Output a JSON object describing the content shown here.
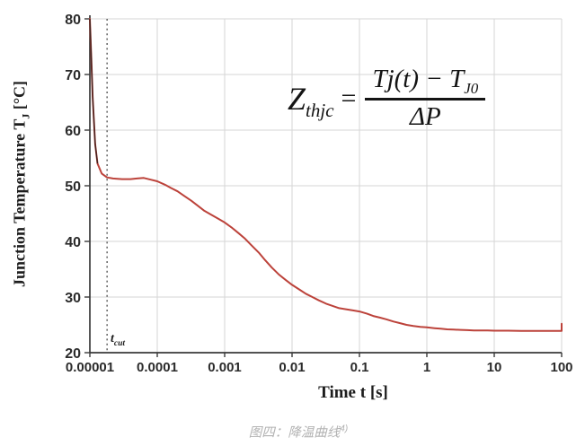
{
  "figure": {
    "caption": {
      "text": "图四：降温曲线",
      "superscript": "4)"
    },
    "formula": {
      "lhs_base": "Z",
      "lhs_sub": "thjc",
      "equals": "=",
      "numerator_main": "Tj(t) − T",
      "numerator_sub": "J0",
      "denominator": "ΔP"
    },
    "tcut_label": {
      "base": "t",
      "sub": "cut"
    }
  },
  "chart_data": {
    "type": "line",
    "title": "",
    "xlabel": "Time t [s]",
    "ylabel": {
      "pre": "Junction Temperature T",
      "sub": "J",
      "post": " [°C]"
    },
    "x_scale": "log",
    "xlim": [
      1e-05,
      100
    ],
    "ylim": [
      20,
      80
    ],
    "x_ticks": [
      "0.00001",
      "0.0001",
      "0.001",
      "0.01",
      "0.1",
      "1",
      "10",
      "100"
    ],
    "x_tick_values": [
      1e-05,
      0.0001,
      0.001,
      0.01,
      0.1,
      1,
      10,
      100
    ],
    "y_ticks": [
      20,
      30,
      40,
      50,
      60,
      70,
      80
    ],
    "grid": true,
    "legend": "none",
    "t_cut_value": 1.8e-05,
    "drop_segment_max_t": 1.31e-05,
    "colors": {
      "curve": "#bc423a",
      "drop": "#40231f",
      "grid": "#d6d6d6",
      "axis": "#3a3a3a",
      "dashed": "#4a4a4a",
      "tick_text": "#2b2b2b",
      "caption": "#b2b2b2"
    },
    "series": [
      {
        "name": "junction-temperature-cooling-curve",
        "color": "#bc423a",
        "points": [
          [
            1e-05,
            80
          ],
          [
            1.05e-05,
            73
          ],
          [
            1.1e-05,
            66
          ],
          [
            1.2e-05,
            57.5
          ],
          [
            1.3e-05,
            54
          ],
          [
            1.5e-05,
            52.2
          ],
          [
            1.8e-05,
            51.5
          ],
          [
            2.2e-05,
            51.3
          ],
          [
            3e-05,
            51.2
          ],
          [
            4e-05,
            51.2
          ],
          [
            5e-05,
            51.3
          ],
          [
            6.3e-05,
            51.4
          ],
          [
            8e-05,
            51.1
          ],
          [
            0.0001,
            50.8
          ],
          [
            0.00013,
            50.2
          ],
          [
            0.00016,
            49.6
          ],
          [
            0.0002,
            49.0
          ],
          [
            0.00025,
            48.2
          ],
          [
            0.00032,
            47.3
          ],
          [
            0.0004,
            46.4
          ],
          [
            0.0005,
            45.5
          ],
          [
            0.00063,
            44.8
          ],
          [
            0.0008,
            44.1
          ],
          [
            0.001,
            43.4
          ],
          [
            0.0013,
            42.4
          ],
          [
            0.0016,
            41.5
          ],
          [
            0.002,
            40.5
          ],
          [
            0.0025,
            39.3
          ],
          [
            0.0032,
            38.0
          ],
          [
            0.004,
            36.6
          ],
          [
            0.005,
            35.3
          ],
          [
            0.0063,
            34.1
          ],
          [
            0.008,
            33.1
          ],
          [
            0.01,
            32.2
          ],
          [
            0.013,
            31.3
          ],
          [
            0.016,
            30.6
          ],
          [
            0.02,
            30.0
          ],
          [
            0.025,
            29.4
          ],
          [
            0.032,
            28.8
          ],
          [
            0.04,
            28.4
          ],
          [
            0.05,
            28.0
          ],
          [
            0.063,
            27.8
          ],
          [
            0.08,
            27.6
          ],
          [
            0.1,
            27.4
          ],
          [
            0.13,
            27.0
          ],
          [
            0.16,
            26.6
          ],
          [
            0.2,
            26.3
          ],
          [
            0.25,
            26.0
          ],
          [
            0.32,
            25.6
          ],
          [
            0.4,
            25.3
          ],
          [
            0.5,
            25.0
          ],
          [
            0.63,
            24.8
          ],
          [
            0.8,
            24.65
          ],
          [
            1,
            24.55
          ],
          [
            1.3,
            24.4
          ],
          [
            1.6,
            24.3
          ],
          [
            2,
            24.2
          ],
          [
            2.5,
            24.15
          ],
          [
            3.2,
            24.1
          ],
          [
            4,
            24.05
          ],
          [
            5,
            24.0
          ],
          [
            6.3,
            24.0
          ],
          [
            8,
            24.0
          ],
          [
            10,
            23.95
          ],
          [
            16,
            23.95
          ],
          [
            25,
            23.9
          ],
          [
            40,
            23.9
          ],
          [
            63,
            23.9
          ],
          [
            100,
            23.9
          ],
          [
            100,
            25.2
          ]
        ]
      }
    ]
  }
}
